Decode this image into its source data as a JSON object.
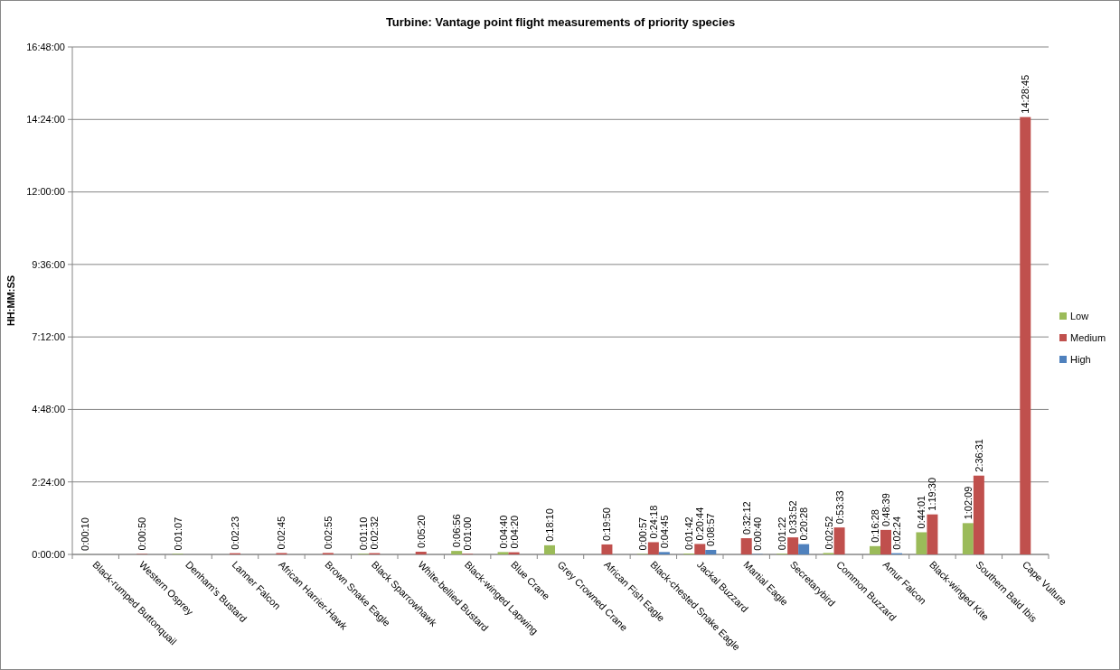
{
  "chart_data": {
    "type": "bar",
    "title": "Turbine: Vantage point flight measurements of priority species",
    "ylabel": "HH:MM:SS",
    "categories": [
      "Black-rumped Buttonquail",
      "Western Osprey",
      "Denham's Bustard",
      "Lanner Falcon",
      "African Harrier-Hawk",
      "Brown Snake Eagle",
      "Black Sparrowhawk",
      "White-bellied Bustard",
      "Black-winged Lapwing",
      "Blue Crane",
      "Grey Crowned Crane",
      "African Fish Eagle",
      "Black-chested Snake Eagle",
      "Jackal Buzzard",
      "Martial Eagle",
      "Secretarybird",
      "Common Buzzard",
      "Amur Falcon",
      "Black-winged Kite",
      "Southern Bald Ibis",
      "Cape Vulture"
    ],
    "series": [
      {
        "name": "Low",
        "color": "#9bbb59",
        "values": [
          0.0028,
          null,
          0.0186,
          null,
          null,
          null,
          0.0194,
          null,
          0.1156,
          0.0778,
          0.3028,
          null,
          0.0158,
          0.0283,
          null,
          0.0228,
          0.0478,
          0.2744,
          0.7336,
          1.0358,
          null
        ],
        "value_labels": [
          "0:00:10",
          null,
          "0:01:07",
          null,
          null,
          null,
          "0:01:10",
          null,
          "0:06:56",
          "0:04:40",
          "0:18:10",
          null,
          "0:00:57",
          "0:01:42",
          null,
          "0:01:22",
          "0:02:52",
          "0:16:28",
          "0:44:01",
          "1:02:09",
          null
        ]
      },
      {
        "name": "Medium",
        "color": "#c0504d",
        "values": [
          null,
          0.0139,
          null,
          0.0397,
          0.0458,
          0.0486,
          0.0422,
          0.0889,
          0.0167,
          0.0722,
          null,
          0.3306,
          0.405,
          0.3456,
          0.5367,
          0.5644,
          0.8925,
          0.8108,
          1.325,
          2.6086,
          14.4792
        ],
        "value_labels": [
          null,
          "0:00:50",
          null,
          "0:02:23",
          "0:02:45",
          "0:02:55",
          "0:02:32",
          "0:05:20",
          "0:01:00",
          "0:04:20",
          null,
          "0:19:50",
          "0:24:18",
          "0:20:44",
          "0:32:12",
          "0:33:52",
          "0:53:33",
          "0:48:39",
          "1:19:30",
          "2:36:31",
          "14:28:45"
        ]
      },
      {
        "name": "High",
        "color": "#4f81bd",
        "values": [
          null,
          null,
          null,
          null,
          null,
          null,
          null,
          null,
          null,
          null,
          null,
          null,
          0.0792,
          0.1492,
          0.0111,
          0.3411,
          null,
          0.04,
          null,
          null,
          null
        ],
        "value_labels": [
          null,
          null,
          null,
          null,
          null,
          null,
          null,
          null,
          null,
          null,
          null,
          null,
          "0:04:45",
          "0:08:57",
          "0:00:40",
          "0:20:28",
          null,
          "0:02:24",
          null,
          null,
          null
        ]
      }
    ],
    "ylim": [
      0,
      16.8
    ],
    "yticks": [
      {
        "value": 0,
        "label": "0:00:00"
      },
      {
        "value": 2.4,
        "label": "2:24:00"
      },
      {
        "value": 4.8,
        "label": "4:48:00"
      },
      {
        "value": 7.2,
        "label": "7:12:00"
      },
      {
        "value": 9.6,
        "label": "9:36:00"
      },
      {
        "value": 12,
        "label": "12:00:00"
      },
      {
        "value": 14.4,
        "label": "14:24:00"
      },
      {
        "value": 16.8,
        "label": "16:48:00"
      }
    ],
    "grid": "y",
    "legend": "right"
  }
}
